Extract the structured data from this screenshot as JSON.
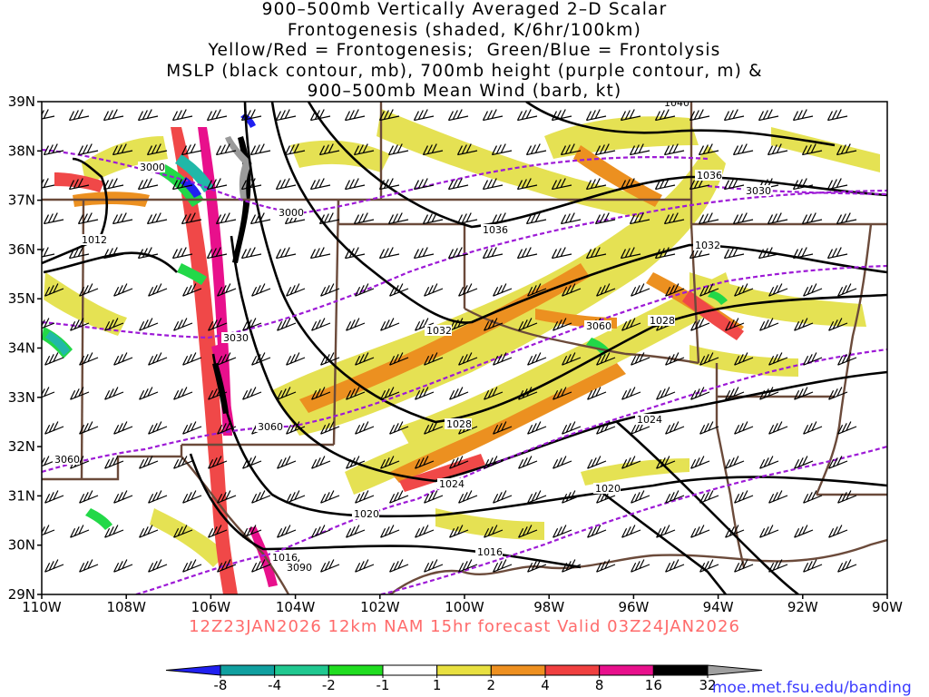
{
  "title_lines": [
    "900–500mb Vertically Averaged 2–D Scalar",
    "Frontogenesis (shaded, K/6hr/100km)",
    "Yellow/Red = Frontogenesis;  Green/Blue = Frontolysis",
    "MSLP (black contour, mb), 700mb height (purple contour, m) &",
    "900–500mb Mean Wind (barb, kt)"
  ],
  "lat_ticks": [
    "39N",
    "38N",
    "37N",
    "36N",
    "35N",
    "34N",
    "33N",
    "32N",
    "31N",
    "30N",
    "29N"
  ],
  "lon_ticks": [
    "110W",
    "108W",
    "106W",
    "104W",
    "102W",
    "100W",
    "98W",
    "96W",
    "94W",
    "92W",
    "90W"
  ],
  "mslp_labels": [
    "1040",
    "1036",
    "1036",
    "1032",
    "1032",
    "1028",
    "1028",
    "1024",
    "1024",
    "1020",
    "1020",
    "1016",
    "1016",
    "1012"
  ],
  "height_labels": [
    "3000",
    "3000",
    "3030",
    "3030",
    "3060",
    "3060",
    "3060",
    "3090"
  ],
  "valid_line": "12Z23JAN2026 12km NAM 15hr forecast Valid 03Z24JAN2026",
  "colorbar": {
    "labels": [
      "-8",
      "-4",
      "-2",
      "-1",
      "1",
      "2",
      "4",
      "8",
      "16",
      "32"
    ],
    "colors": [
      "#2020f0",
      "#10a0a0",
      "#20c890",
      "#20dd20",
      "#ffffff",
      "#e8e040",
      "#ee9020",
      "#f04040",
      "#e8108c",
      "#000000",
      "#a0a0a0"
    ]
  },
  "credit": "moe.met.fsu.edu/banding",
  "colors": {
    "state_border": "#6b4a3a",
    "mslp": "#000000",
    "height": "#9d1ad6",
    "yellow": "#e4e04a",
    "orange": "#ec9020",
    "red": "#f04848",
    "magenta": "#e8108c",
    "green": "#22d848",
    "teal": "#20b8a8",
    "blue": "#2020f0",
    "gray": "#9a9a9a"
  }
}
